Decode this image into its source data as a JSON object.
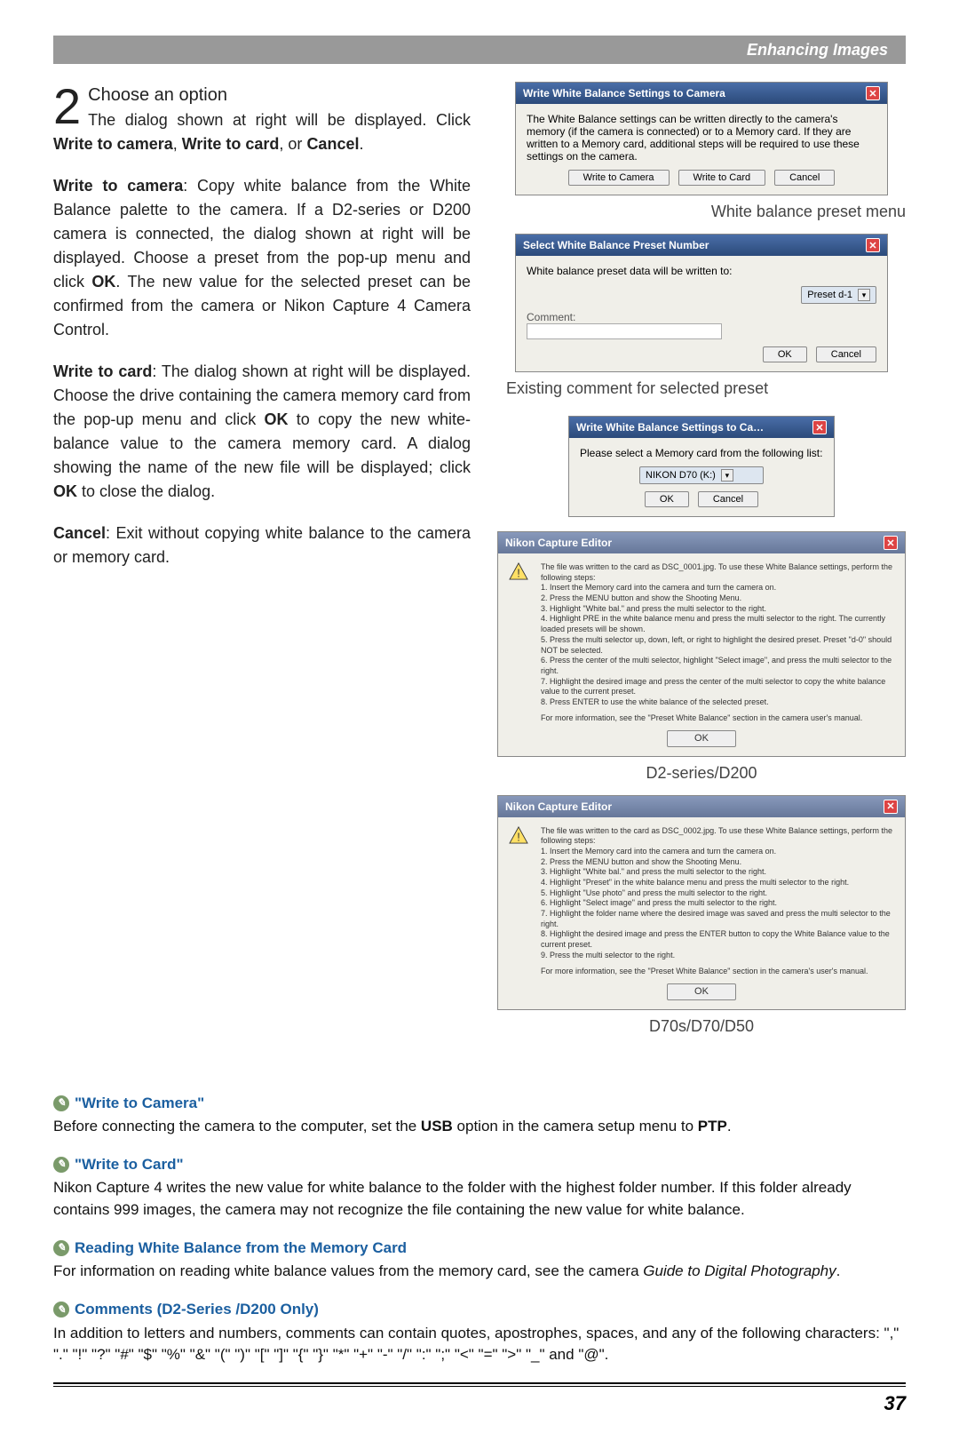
{
  "colors": {
    "header_bg": "#999999",
    "title_gradient_top": "#4a6ea8",
    "title_gradient_bottom": "#2b4a7a",
    "note_heading": "#1b5fa0",
    "note_icon_bg": "#7a9a6a",
    "body_text": "#222222",
    "dialog_bg": "#f0efe9"
  },
  "fonts": {
    "body_size": 18,
    "caption_size": 18,
    "dialog_size": 12,
    "tiny_size": 9,
    "step_num_size": 56
  },
  "header": {
    "title": "Enhancing Images"
  },
  "step": {
    "number": "2",
    "title": "Choose an option"
  },
  "left": {
    "intro": "The dialog shown at right will be displayed. Click ",
    "intro_bold1": "Write to camera",
    "intro_mid": ", ",
    "intro_bold2": "Write to card",
    "intro_mid2": ", or ",
    "intro_bold3": "Cancel",
    "intro_end": ".",
    "wtc_head": "Write to camera",
    "wtc_body": ": Copy white balance from the White Balance palette to the camera. If a D2-series or D200 camera is connected, the dialog shown at right will be displayed. Choose a preset from the pop-up menu and click ",
    "wtc_bold": "OK",
    "wtc_body2": ". The new value for the selected preset can be confirmed from the camera or Nikon Capture 4 Camera Control.",
    "wtcard_head": "Write to card",
    "wtcard_body": ": The dialog shown at right will be displayed. Choose the drive containing the camera memory card from the pop-up menu and click ",
    "wtcard_bold": "OK",
    "wtcard_body2": " to copy the new white-balance value to the camera memory card. A dialog showing the name of the new file will be displayed; click ",
    "wtcard_bold2": "OK",
    "wtcard_body3": " to close the dialog.",
    "cancel_head": "Cancel",
    "cancel_body": ": Exit without copying white balance to the camera or memory card."
  },
  "dialog1": {
    "title": "Write White Balance Settings to Camera",
    "text": "The White Balance settings can be written directly to the camera's memory (if the camera is connected) or to a Memory card. If they are written to a Memory card, additional steps will be required to use these settings on the camera.",
    "b1": "Write to Camera",
    "b2": "Write to Card",
    "b3": "Cancel"
  },
  "caption1": "White balance preset menu",
  "dialog2": {
    "title": "Select White Balance Preset Number",
    "text": "White balance preset data will be written to:",
    "preset": "Preset d-1",
    "comment_label": "Comment:",
    "ok": "OK",
    "cancel": "Cancel"
  },
  "caption2": "Existing comment for selected preset",
  "dialog3": {
    "title": "Write White Balance Settings to Ca…",
    "text": "Please select a Memory card from the following list:",
    "drive": "NIKON D70 (K:)",
    "ok": "OK",
    "cancel": "Cancel"
  },
  "dialog4": {
    "title": "Nikon Capture Editor",
    "lead": "The file was written to the card as DSC_0001.jpg. To use these White Balance settings, perform the following steps:",
    "steps": [
      "1. Insert the Memory card into the camera and turn the camera on.",
      "2. Press the MENU button and show the Shooting Menu.",
      "3. Highlight \"White bal.\" and press the multi selector to the right.",
      "4. Highlight PRE in the white balance menu and press the multi selector to the right. The currently loaded presets will be shown.",
      "5. Press the multi selector up, down, left, or right to highlight the desired preset. Preset \"d-0\" should NOT be selected.",
      "6. Press the center of the multi selector, highlight \"Select image\", and press the multi selector to the right.",
      "7. Highlight the desired image and press the center of the multi selector to copy the white balance value to the current preset.",
      "8. Press ENTER to use the white balance of the selected preset."
    ],
    "footer": "For more information, see the \"Preset White Balance\" section in the camera user's manual.",
    "ok": "OK"
  },
  "caption3": "D2-series/D200",
  "dialog5": {
    "title": "Nikon Capture Editor",
    "lead": "The file was written to the card as DSC_0002.jpg. To use these White Balance settings, perform the following steps:",
    "steps": [
      "1. Insert the Memory card into the camera and turn the camera on.",
      "2. Press the MENU button and show the Shooting Menu.",
      "3. Highlight \"White bal.\" and press the multi selector to the right.",
      "4. Highlight \"Preset\" in the white balance menu and press the multi selector to the right.",
      "5. Highlight \"Use photo\" and press the multi selector to the right.",
      "6. Highlight \"Select image\" and press the multi selector to the right.",
      "7. Highlight the folder name where the desired image was saved and press the multi selector to the right.",
      "8. Highlight the desired image and press the ENTER button to copy the White Balance value to the current preset.",
      "9. Press the multi selector to the right."
    ],
    "footer": "For more information, see the \"Preset White Balance\" section in the camera's user's manual.",
    "ok": "OK"
  },
  "caption4": "D70s/D70/D50",
  "notes": {
    "n1_head": "\"Write to Camera\"",
    "n1_body_a": "Before connecting the camera to the computer, set the ",
    "n1_bold": "USB",
    "n1_body_b": " option in the camera setup menu to ",
    "n1_bold2": "PTP",
    "n1_end": ".",
    "n2_head": "\"Write to Card\"",
    "n2_body": "Nikon Capture 4 writes the new value for white balance to the folder with the highest folder number. If this folder already contains 999 images, the camera may not recognize the file containing the new value for white balance.",
    "n3_head": "Reading White Balance from the Memory Card",
    "n3_body_a": "For information on reading white balance values from the memory card, see the camera ",
    "n3_italic": "Guide to Digital Photography",
    "n3_end": ".",
    "n4_head": "Comments (D2-Series /D200 Only)",
    "n4_body": "In addition to letters and numbers, comments can contain quotes, apostrophes, spaces, and any of the following characters: \",\" \".\" \"!\" \"?\" \"#\" \"$\" \"%\" \"&\" \"(\" \")\" \"[\" \"]\" \"{\" \"}\" \"*\" \"+\" \"-\" \"/\" \":\" \";\" \"<\" \"=\" \">\" \"_\" and \"@\"."
  },
  "page_number": "37"
}
